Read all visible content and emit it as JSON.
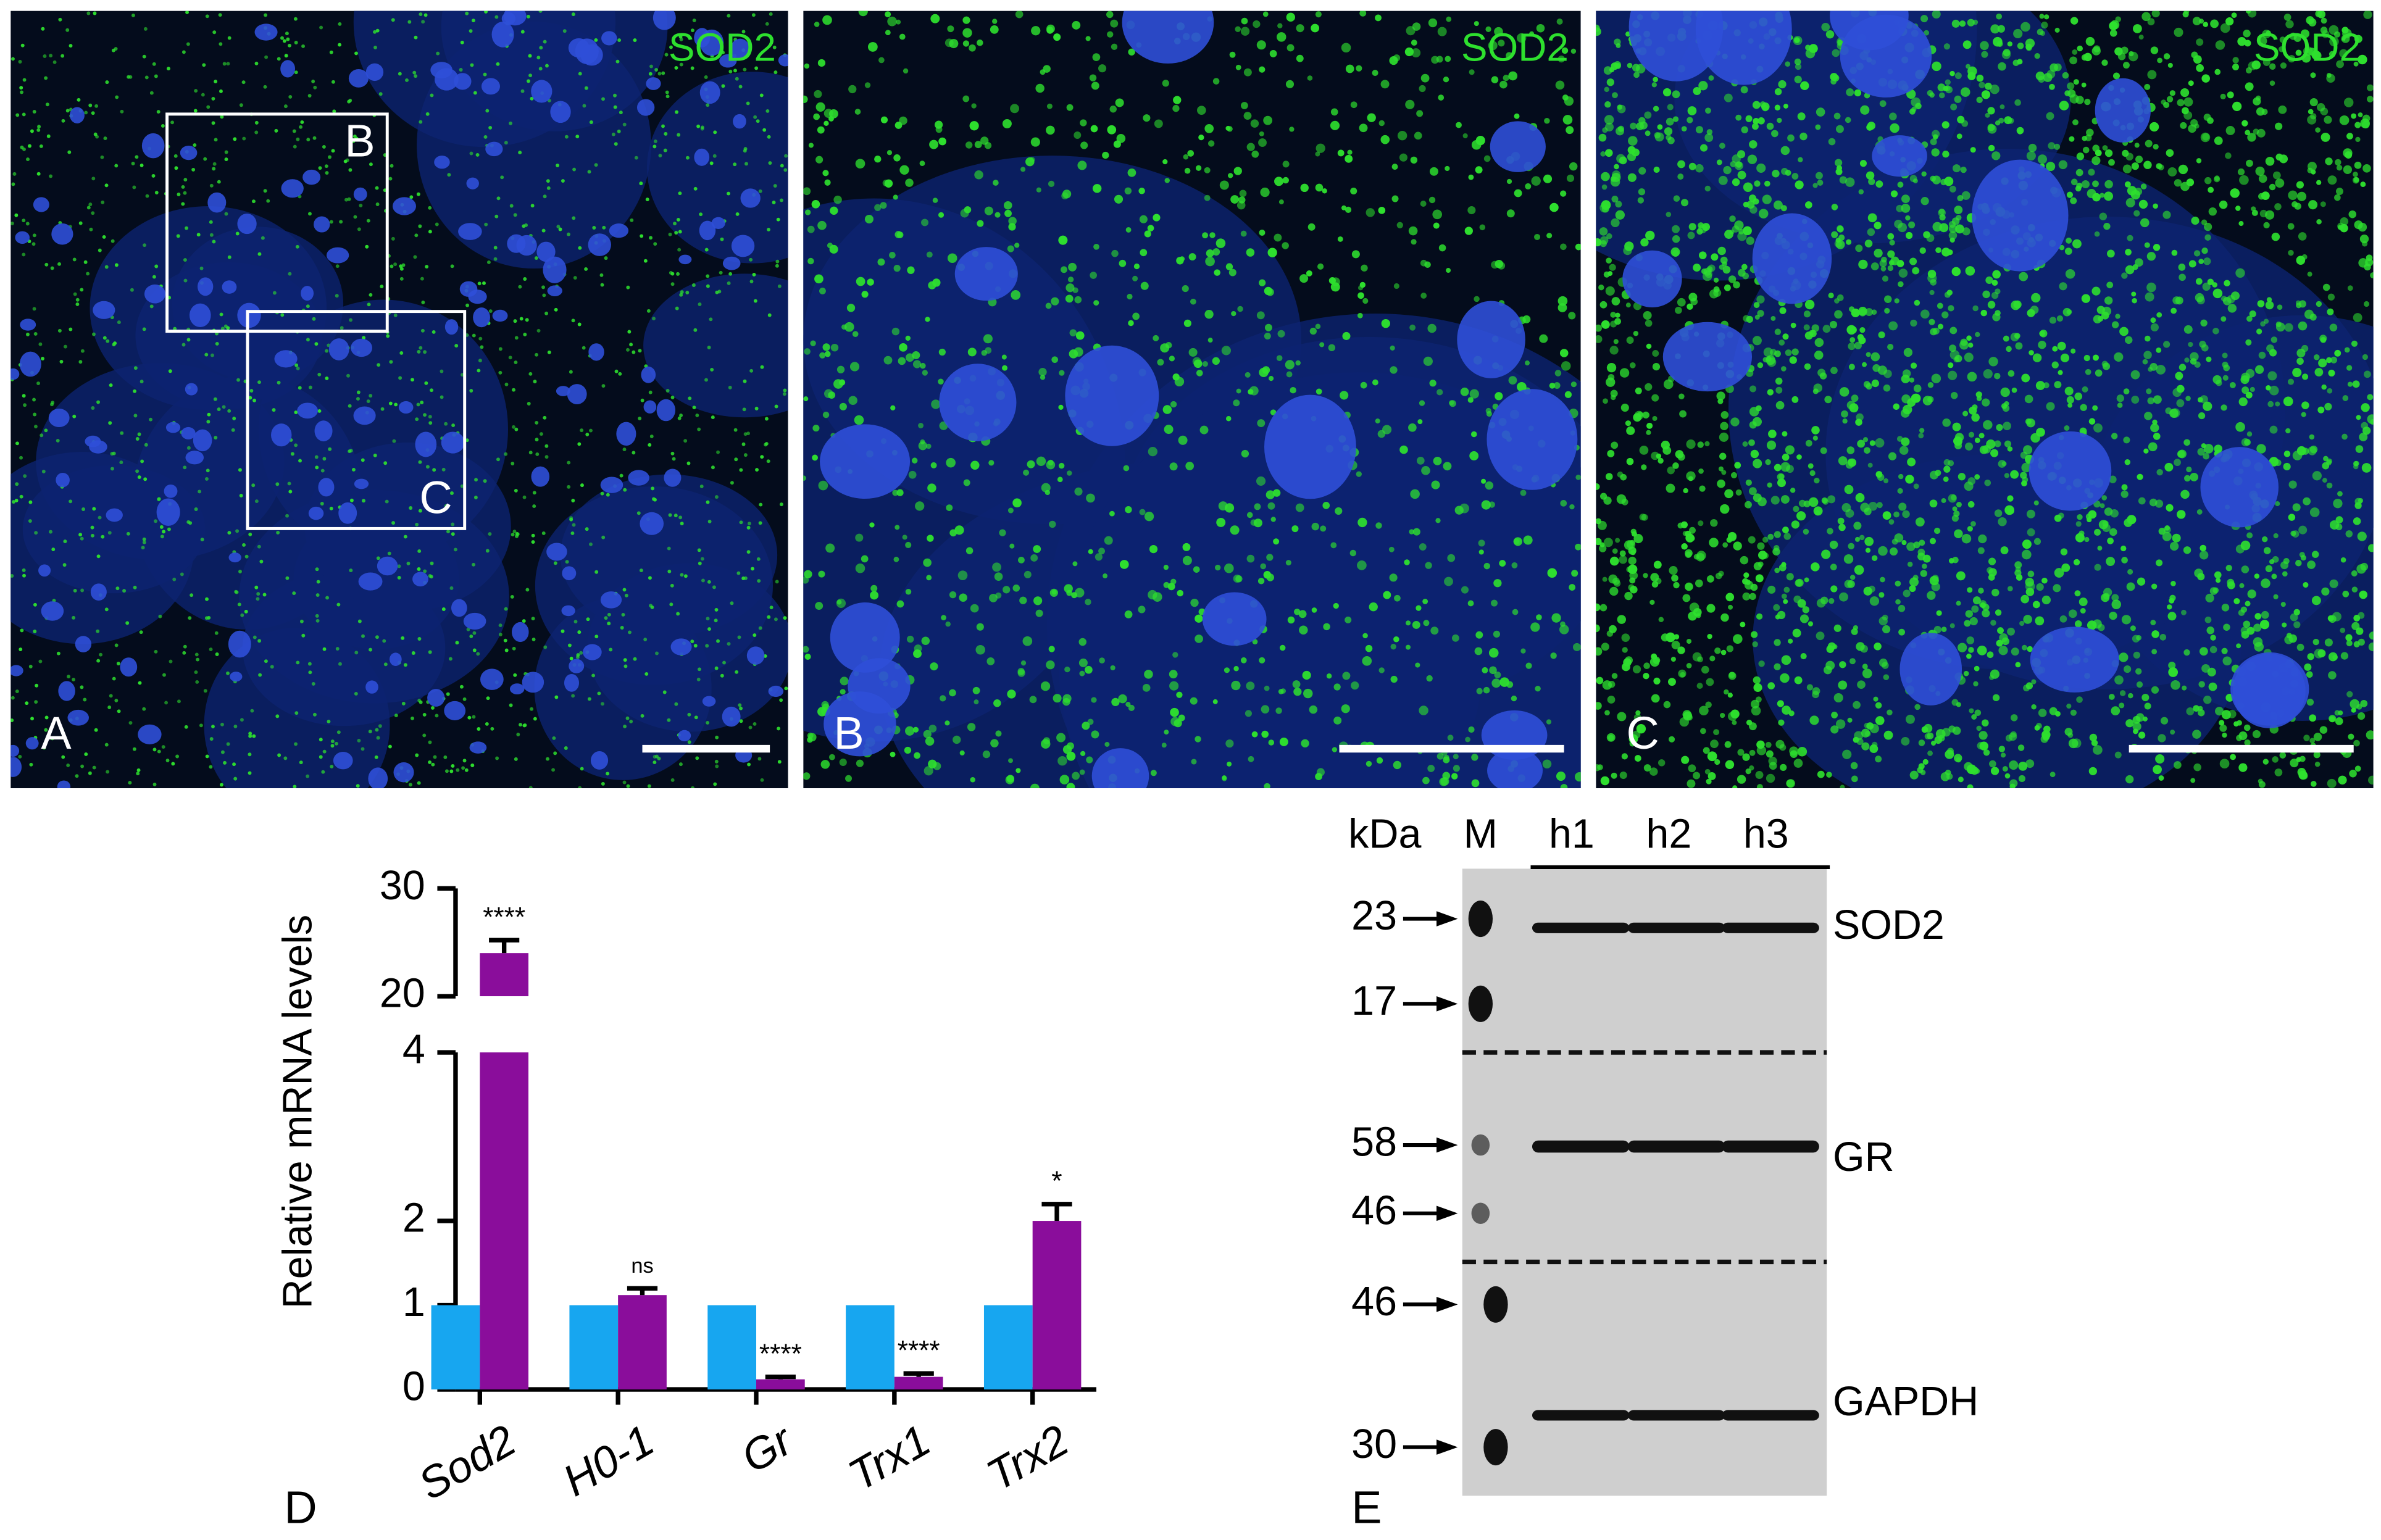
{
  "panels": [
    {
      "letter": "A",
      "stain": "SOD2",
      "boxes": [
        "B",
        "C"
      ]
    },
    {
      "letter": "B",
      "stain": "SOD2"
    },
    {
      "letter": "C",
      "stain": "SOD2"
    }
  ],
  "chart_data": {
    "type": "bar",
    "panel": "D",
    "y_label": "Relative mRNA levels",
    "categories": [
      "Sod2",
      "H0-1",
      "Gr",
      "Trx1",
      "Trx2"
    ],
    "series": [
      {
        "color": "#17a6f0",
        "values": [
          1,
          1,
          1,
          1,
          1
        ]
      },
      {
        "color": "#8a0d9b",
        "values": [
          24,
          1.12,
          0.12,
          0.15,
          2.0
        ],
        "errors": [
          1.2,
          0.08,
          0.03,
          0.04,
          0.2
        ]
      }
    ],
    "annotations": [
      "****",
      "ns",
      "****",
      "****",
      "*"
    ],
    "ylim": [
      0,
      4
    ],
    "yticks": [
      0,
      1,
      2,
      4
    ],
    "break": {
      "ylim": [
        20,
        30
      ],
      "yticks": [
        20,
        30
      ]
    }
  },
  "blot": {
    "panel": "E",
    "unit": "kDa",
    "lanes": [
      "M",
      "h1",
      "h2",
      "h3"
    ],
    "sections": [
      {
        "protein": "SOD2",
        "markers": [
          23,
          17
        ]
      },
      {
        "protein": "GR",
        "markers": [
          58,
          46
        ]
      },
      {
        "protein": "GAPDH",
        "markers": [
          46,
          30
        ]
      }
    ]
  }
}
